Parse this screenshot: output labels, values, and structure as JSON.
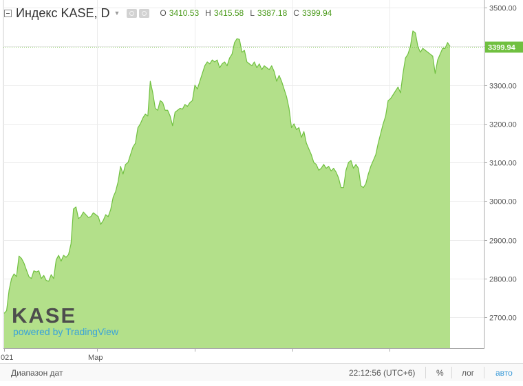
{
  "legend": {
    "title": "Индекс KASE, D",
    "ohlc": [
      {
        "key": "O",
        "value": "3410.53"
      },
      {
        "key": "H",
        "value": "3415.58"
      },
      {
        "key": "L",
        "value": "3387.18"
      },
      {
        "key": "C",
        "value": "3399.94"
      }
    ]
  },
  "logo": {
    "word": "KASE",
    "powered": "powered by TradingView"
  },
  "footer": {
    "date_range": "Диапазон дат",
    "clock": "22:12:56 (UTC+6)",
    "percent": "%",
    "log": "лог",
    "auto": "авто"
  },
  "colors": {
    "area_fill": "#b3e08a",
    "line": "#70c040",
    "value_text": "#4a9a1a",
    "auto_link": "#3a9ad8"
  },
  "chart_data": {
    "type": "area",
    "title": "Индекс KASE, D",
    "ylim": [
      2620,
      3520
    ],
    "y_ticks": [
      "3500.00",
      "3400.00",
      "3300.00",
      "3200.00",
      "3100.00",
      "3000.00",
      "2900.00",
      "2800.00",
      "2700.00"
    ],
    "x_tick_labels": [
      "021",
      "Мар"
    ],
    "last_value_label": "3399.94",
    "last_value": 3399.94,
    "grid": true,
    "values": [
      2710,
      2717,
      2770,
      2800,
      2812,
      2805,
      2858,
      2852,
      2840,
      2822,
      2805,
      2800,
      2820,
      2817,
      2820,
      2800,
      2808,
      2795,
      2793,
      2810,
      2800,
      2848,
      2860,
      2845,
      2860,
      2855,
      2862,
      2890,
      2980,
      2985,
      2955,
      2960,
      2972,
      2965,
      2958,
      2960,
      2970,
      2965,
      2960,
      2940,
      2950,
      2965,
      2960,
      2978,
      3010,
      3025,
      3050,
      3090,
      3070,
      3095,
      3100,
      3120,
      3140,
      3150,
      3190,
      3200,
      3215,
      3225,
      3220,
      3310,
      3280,
      3240,
      3235,
      3260,
      3255,
      3235,
      3235,
      3220,
      3195,
      3230,
      3235,
      3240,
      3238,
      3250,
      3245,
      3255,
      3260,
      3300,
      3290,
      3310,
      3330,
      3350,
      3360,
      3355,
      3365,
      3360,
      3365,
      3345,
      3355,
      3360,
      3350,
      3370,
      3380,
      3410,
      3420,
      3418,
      3385,
      3390,
      3360,
      3355,
      3350,
      3360,
      3345,
      3355,
      3340,
      3350,
      3345,
      3340,
      3350,
      3335,
      3310,
      3325,
      3310,
      3290,
      3270,
      3240,
      3190,
      3200,
      3185,
      3190,
      3165,
      3180,
      3150,
      3135,
      3120,
      3100,
      3095,
      3080,
      3085,
      3095,
      3085,
      3090,
      3078,
      3085,
      3075,
      3060,
      3035,
      3035,
      3080,
      3100,
      3105,
      3085,
      3095,
      3085,
      3040,
      3035,
      3045,
      3070,
      3090,
      3105,
      3120,
      3150,
      3175,
      3200,
      3220,
      3260,
      3265,
      3275,
      3285,
      3295,
      3280,
      3330,
      3370,
      3380,
      3400,
      3440,
      3435,
      3400,
      3385,
      3395,
      3390,
      3385,
      3380,
      3375,
      3330,
      3365,
      3380,
      3395,
      3395,
      3410,
      3400
    ]
  }
}
